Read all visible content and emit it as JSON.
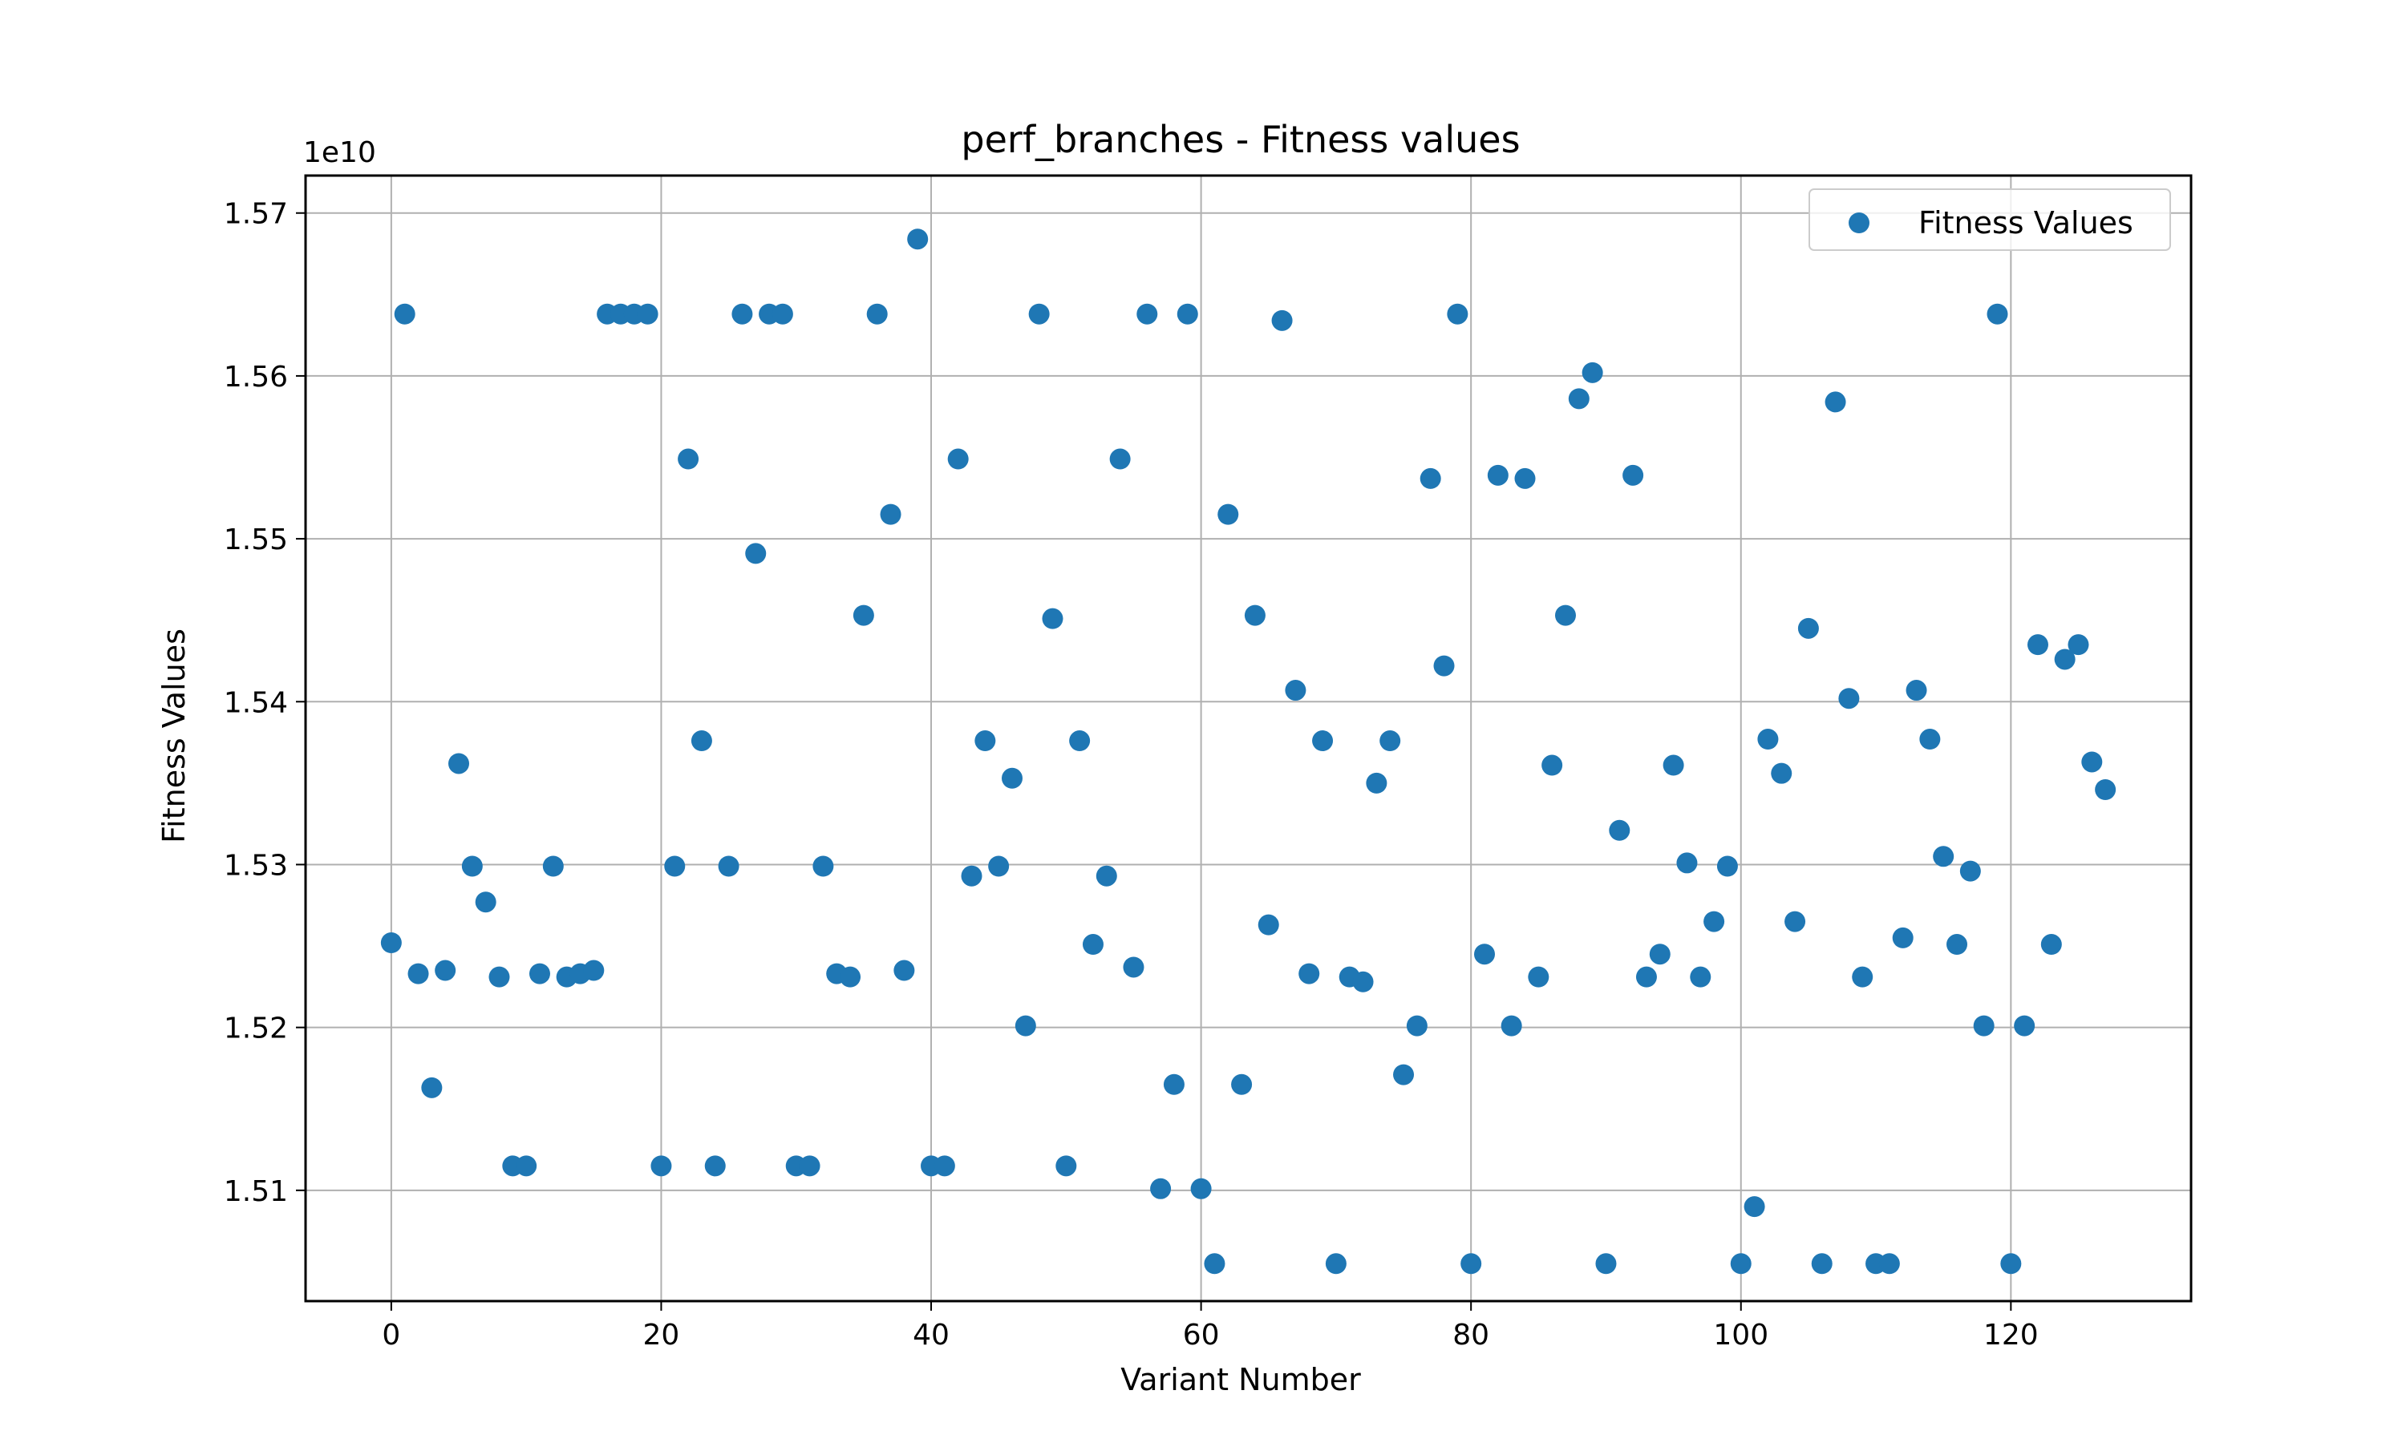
{
  "chart_data": {
    "type": "scatter",
    "title": "perf_branches - Fitness values",
    "xlabel": "Variant Number",
    "ylabel": "Fitness Values",
    "y_offset_text": "1e10",
    "xlim": [
      -6.35,
      133.35
    ],
    "ylim": [
      1.5032,
      1.5723
    ],
    "x_ticks": [
      0,
      20,
      40,
      60,
      80,
      100,
      120
    ],
    "x_tick_labels": [
      "0",
      "20",
      "40",
      "60",
      "80",
      "100",
      "120"
    ],
    "y_ticks": [
      1.51,
      1.52,
      1.53,
      1.54,
      1.55,
      1.56,
      1.57
    ],
    "y_tick_labels": [
      "1.51",
      "1.52",
      "1.53",
      "1.54",
      "1.55",
      "1.56",
      "1.57"
    ],
    "grid": true,
    "legend_position": "top-right",
    "marker_color": "#1f77b4",
    "series": [
      {
        "name": "Fitness Values",
        "x": [
          0,
          1,
          2,
          3,
          4,
          5,
          6,
          7,
          8,
          9,
          10,
          11,
          12,
          13,
          14,
          15,
          16,
          17,
          18,
          19,
          20,
          21,
          22,
          23,
          24,
          25,
          26,
          27,
          28,
          29,
          30,
          31,
          32,
          33,
          34,
          35,
          36,
          37,
          38,
          39,
          40,
          41,
          42,
          43,
          44,
          45,
          46,
          47,
          48,
          49,
          50,
          51,
          52,
          53,
          54,
          55,
          56,
          57,
          58,
          59,
          60,
          61,
          62,
          63,
          64,
          65,
          66,
          67,
          68,
          69,
          70,
          71,
          72,
          73,
          74,
          75,
          76,
          77,
          78,
          79,
          80,
          81,
          82,
          83,
          84,
          85,
          86,
          87,
          88,
          89,
          90,
          91,
          92,
          93,
          94,
          95,
          96,
          97,
          98,
          99,
          100,
          101,
          102,
          103,
          104,
          105,
          106,
          107,
          108,
          109,
          110,
          111,
          112,
          113,
          114,
          115,
          116,
          117,
          118,
          119,
          120,
          121,
          122,
          123,
          124,
          125,
          126,
          127
        ],
        "y": [
          1.5252,
          1.5638,
          1.5233,
          1.5163,
          1.5235,
          1.5362,
          1.5299,
          1.5277,
          1.5231,
          1.5115,
          1.5115,
          1.5233,
          1.5299,
          1.5231,
          1.5233,
          1.5235,
          1.5638,
          1.5638,
          1.5638,
          1.5638,
          1.5115,
          1.5299,
          1.5549,
          1.5376,
          1.5115,
          1.5299,
          1.5638,
          1.5491,
          1.5638,
          1.5638,
          1.5115,
          1.5115,
          1.5299,
          1.5233,
          1.5231,
          1.5453,
          1.5638,
          1.5515,
          1.5235,
          1.5684,
          1.5115,
          1.5115,
          1.5549,
          1.5293,
          1.5376,
          1.5299,
          1.5353,
          1.5201,
          1.5638,
          1.5451,
          1.5115,
          1.5376,
          1.5251,
          1.5293,
          1.5549,
          1.5237,
          1.5638,
          1.5101,
          1.5165,
          1.5638,
          1.5101,
          1.5055,
          1.5515,
          1.5165,
          1.5453,
          1.5263,
          1.5634,
          1.5407,
          1.5233,
          1.5376,
          1.5055,
          1.5231,
          1.5228,
          1.535,
          1.5376,
          1.5171,
          1.5201,
          1.5537,
          1.5422,
          1.5638,
          1.5055,
          1.5245,
          1.5539,
          1.5201,
          1.5537,
          1.5231,
          1.5361,
          1.5453,
          1.5586,
          1.5602,
          1.5055,
          1.5321,
          1.5539,
          1.5231,
          1.5245,
          1.5361,
          1.5301,
          1.5231,
          1.5265,
          1.5299,
          1.5055,
          1.509,
          1.5377,
          1.5356,
          1.5265,
          1.5445,
          1.5055,
          1.5584,
          1.5402,
          1.5231,
          1.5055,
          1.5055,
          1.5255,
          1.5407,
          1.5377,
          1.5305,
          1.5251,
          1.5296,
          1.5201,
          1.5638,
          1.5055,
          1.5201,
          1.5435,
          1.5251,
          1.5426,
          1.5435,
          1.5363,
          1.5346
        ]
      }
    ]
  }
}
